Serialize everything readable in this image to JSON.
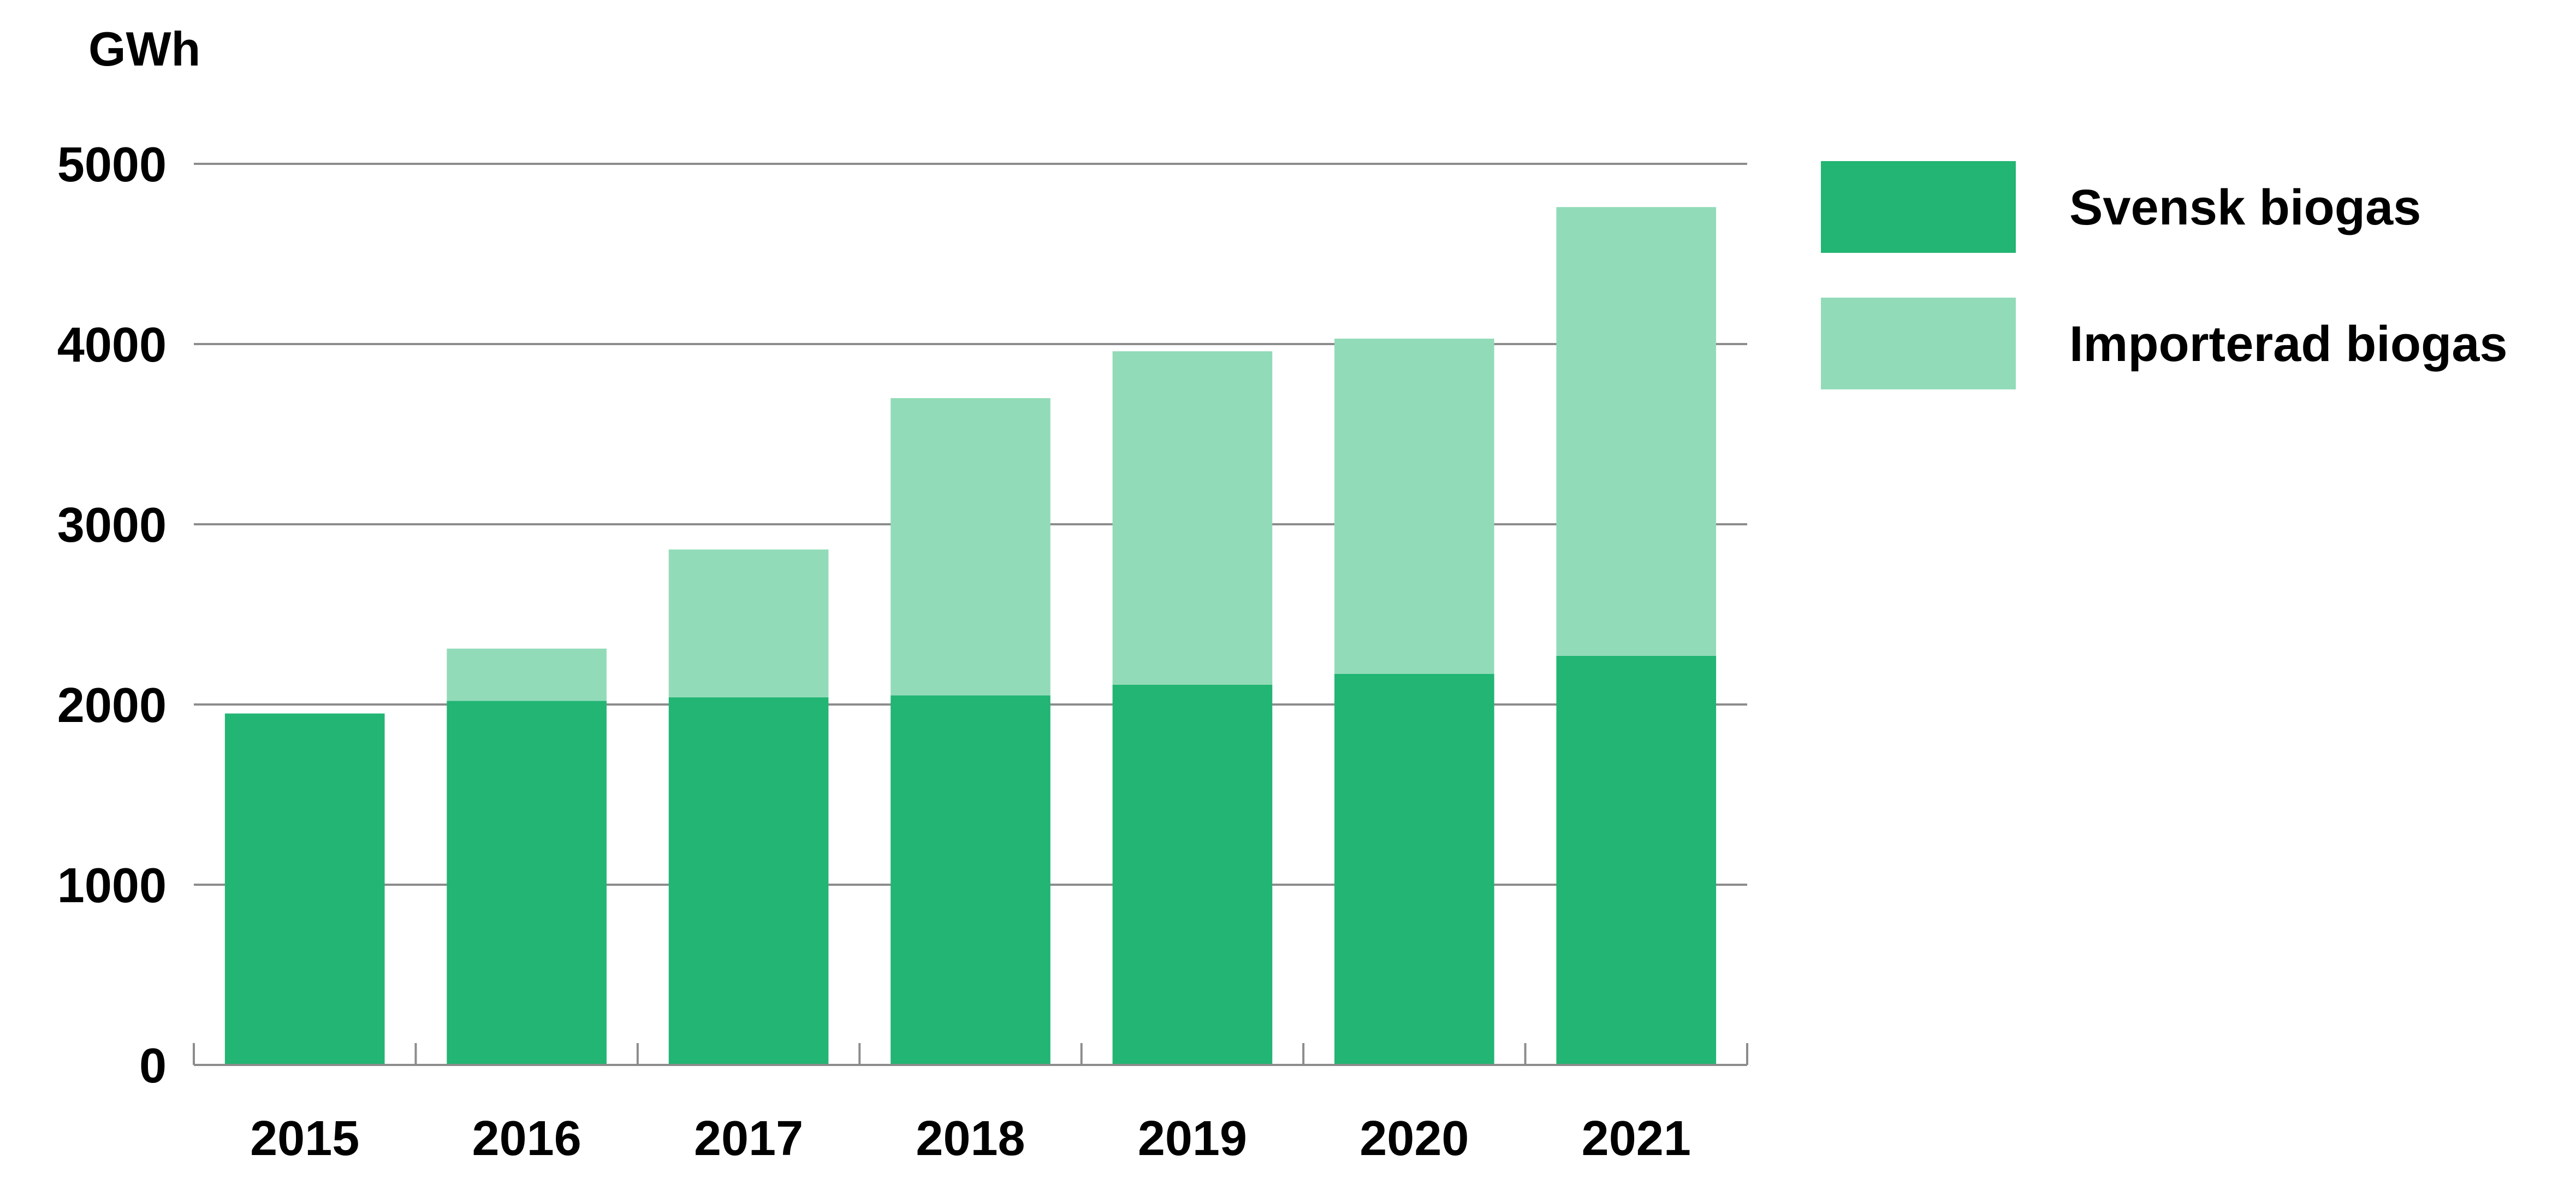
{
  "chart_data": {
    "type": "bar",
    "stacked": true,
    "title": "",
    "ylabel": "GWh",
    "xlabel": "",
    "ylim": [
      0,
      5000
    ],
    "yticks": [
      "0",
      "1000",
      "2000",
      "3000",
      "4000",
      "5000"
    ],
    "categories": [
      "2015",
      "2016",
      "2017",
      "2018",
      "2019",
      "2020",
      "2021"
    ],
    "series": [
      {
        "name": "Svensk biogas",
        "color": "#22b573",
        "values": [
          1950,
          2020,
          2040,
          2050,
          2110,
          2170,
          2270
        ]
      },
      {
        "name": "Importerad biogas",
        "color": "#92dbb8",
        "values": [
          0,
          290,
          820,
          1650,
          1850,
          1860,
          2490
        ]
      }
    ],
    "grid": true,
    "legend": "right"
  }
}
